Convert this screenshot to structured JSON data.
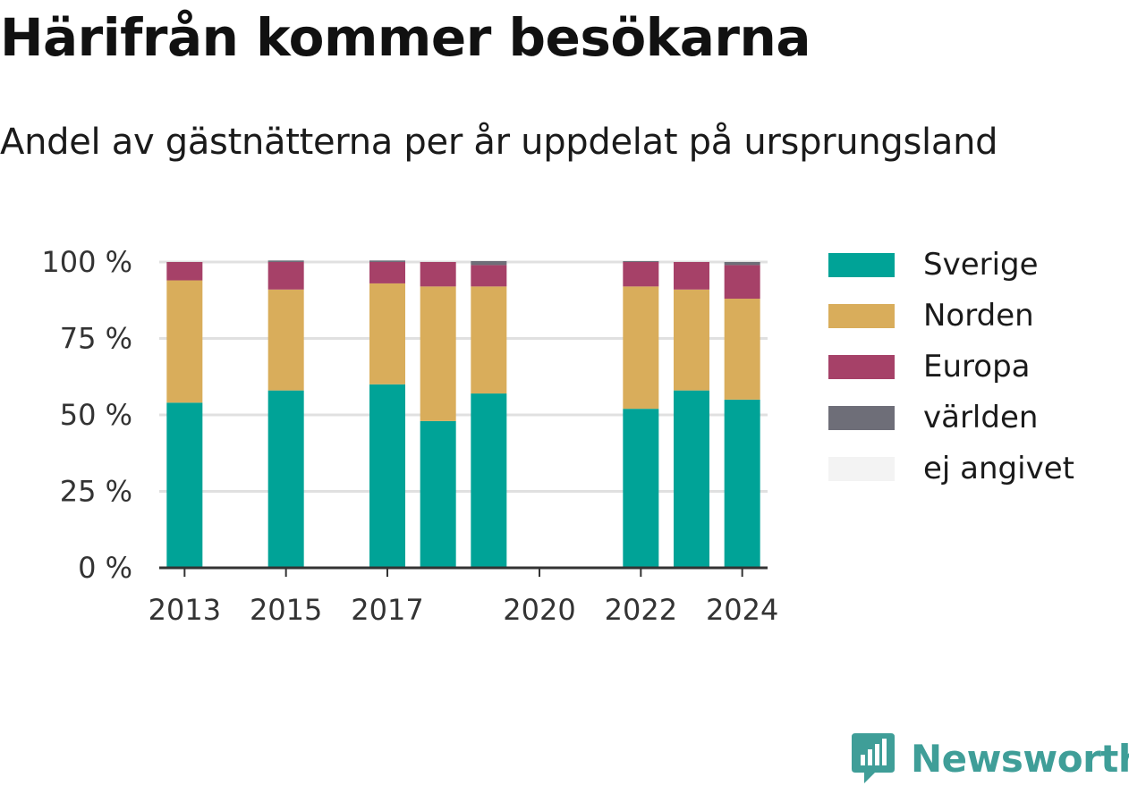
{
  "title": "Härifrån kommer besökarna",
  "subtitle": "Andel av gästnätterna per år uppdelat på ursprungsland",
  "brand": {
    "name": "Newsworthy",
    "color": "#3f9e98",
    "icon": "bar-chart-speech-icon"
  },
  "chart_data": {
    "type": "bar",
    "stacked": true,
    "categories": [
      "2013",
      "2014",
      "2015",
      "2016",
      "2017",
      "2018",
      "2019",
      "2020",
      "2021",
      "2022",
      "2023",
      "2024"
    ],
    "x_tick_labels": [
      "2013",
      "2015",
      "2017",
      "2020",
      "2022",
      "2024"
    ],
    "y_tick_labels": [
      "0 %",
      "25 %",
      "50 %",
      "75 %",
      "100 %"
    ],
    "ylim": [
      0,
      100
    ],
    "grid": true,
    "legend_position": "right",
    "series": [
      {
        "name": "Sverige",
        "color": "#00a397",
        "values": [
          54,
          null,
          58,
          null,
          60,
          48,
          57,
          null,
          null,
          52,
          58,
          55
        ]
      },
      {
        "name": "Norden",
        "color": "#d9ad5b",
        "values": [
          40,
          null,
          33,
          null,
          33,
          44,
          35,
          null,
          null,
          40,
          33,
          33
        ]
      },
      {
        "name": "Europa",
        "color": "#a64168",
        "values": [
          6,
          null,
          9,
          null,
          7,
          8,
          7,
          null,
          null,
          8,
          9,
          11
        ]
      },
      {
        "name": "världen",
        "color": "#6e6e78",
        "values": [
          0,
          null,
          0.5,
          null,
          0.5,
          0,
          1.3,
          null,
          null,
          0.3,
          0,
          1
        ]
      },
      {
        "name": "ej angivet",
        "color": "#f3f3f3",
        "values": [
          0,
          null,
          0,
          null,
          0,
          0,
          0,
          null,
          null,
          0,
          0,
          0
        ]
      }
    ]
  }
}
